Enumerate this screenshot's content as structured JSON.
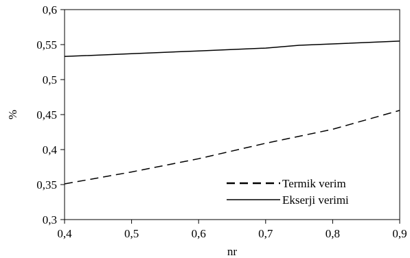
{
  "chart_data": {
    "type": "line",
    "title": "",
    "xlabel": "nr",
    "ylabel": "%",
    "xlim": [
      0.4,
      0.9
    ],
    "ylim": [
      0.3,
      0.6
    ],
    "xticks": [
      0.4,
      0.5,
      0.6,
      0.7,
      0.8,
      0.9
    ],
    "xtick_labels": [
      "0,4",
      "0,5",
      "0,6",
      "0,7",
      "0,8",
      "0,9"
    ],
    "yticks": [
      0.3,
      0.35,
      0.4,
      0.45,
      0.5,
      0.55,
      0.6
    ],
    "ytick_labels": [
      "0,3",
      "0,35",
      "0,4",
      "0,45",
      "0,5",
      "0,55",
      "0,6"
    ],
    "grid": false,
    "legend_position": "bottom-right",
    "x": [
      0.4,
      0.5,
      0.6,
      0.7,
      0.75,
      0.8,
      0.9
    ],
    "series": [
      {
        "name": "Termik verim",
        "style": "dashed",
        "color": "#000000",
        "values": [
          0.351,
          0.368,
          0.387,
          0.409,
          0.419,
          0.429,
          0.456
        ]
      },
      {
        "name": "Ekserji verimi",
        "style": "solid",
        "color": "#000000",
        "values": [
          0.533,
          0.537,
          0.541,
          0.545,
          0.549,
          0.551,
          0.555
        ]
      }
    ]
  }
}
